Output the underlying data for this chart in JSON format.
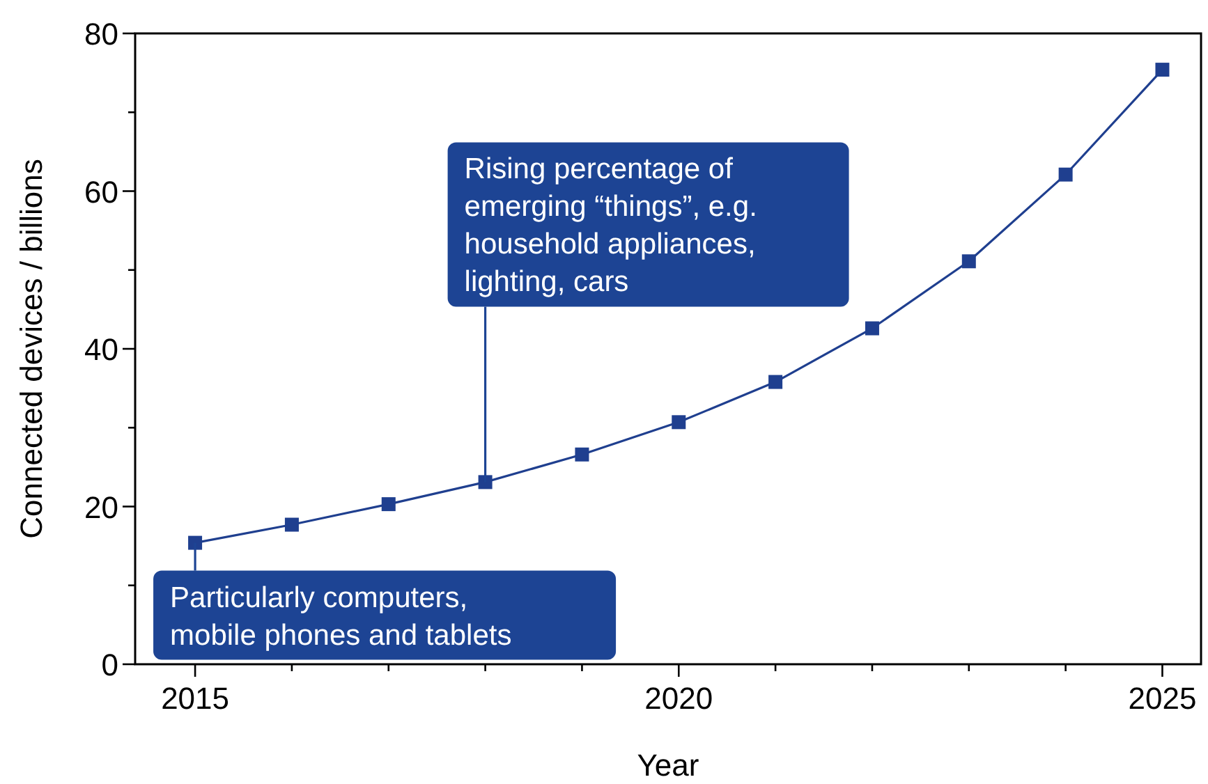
{
  "chart_data": {
    "type": "line",
    "xlabel": "Year",
    "ylabel": "Connected devices / billions",
    "x": [
      2015,
      2016,
      2017,
      2018,
      2019,
      2020,
      2021,
      2022,
      2023,
      2024,
      2025
    ],
    "series": [
      {
        "color": "#1f3f8f",
        "values": [
          15.4,
          17.7,
          20.3,
          23.1,
          26.6,
          30.7,
          35.8,
          42.6,
          51.1,
          62.1,
          75.4
        ]
      }
    ],
    "xlim": [
      2014.38,
      2025.4
    ],
    "xticks": [
      2015,
      {
        "value": 2016,
        "label": null
      },
      {
        "value": 2017,
        "label": null
      },
      {
        "value": 2018,
        "label": null
      },
      {
        "value": 2019,
        "label": null
      },
      2020,
      {
        "value": 2021,
        "label": null
      },
      {
        "value": 2022,
        "label": null
      },
      {
        "value": 2023,
        "label": null
      },
      {
        "value": 2024,
        "label": null
      },
      2025
    ],
    "ylim": [
      0,
      80
    ],
    "yticks": [
      0,
      {
        "value": 10,
        "label": null
      },
      20,
      {
        "value": 30,
        "label": null
      },
      40,
      {
        "value": 50,
        "label": null
      },
      60,
      {
        "value": 70,
        "label": null
      },
      80
    ],
    "marker": "square",
    "line_style": "solid",
    "grid": false,
    "annotations": [
      {
        "text": "Particularly computers,\nmobile phones and tablets",
        "x": 2015,
        "y": 15.4
      },
      {
        "text": "Rising percentage of\nemerging “things”, e.g.\nhousehold appliances,\nlighting, cars",
        "x": 2018,
        "y": 23.1
      }
    ]
  }
}
